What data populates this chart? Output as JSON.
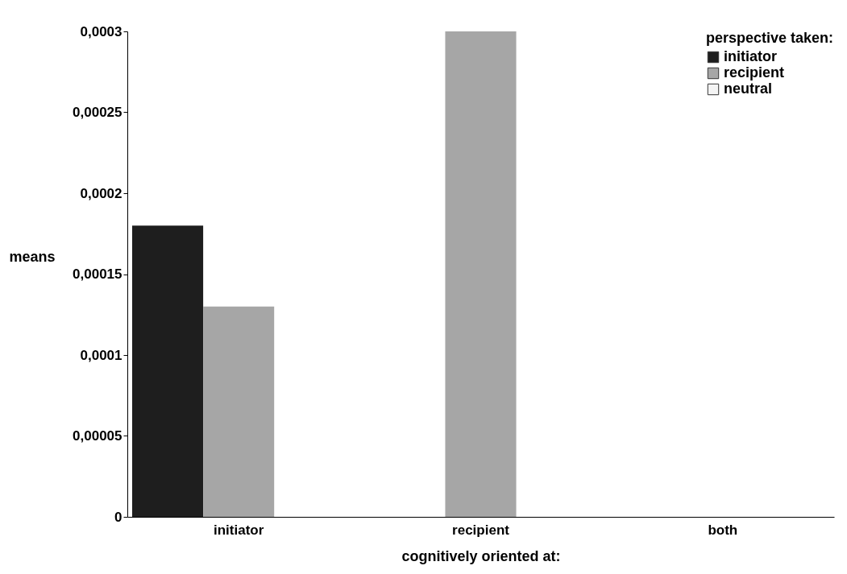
{
  "chart_data": {
    "type": "bar",
    "xlabel": "cognitively oriented at:",
    "ylabel": "means",
    "legend_title": "perspective taken:",
    "legend": "top right",
    "grid": false,
    "categories": [
      "initiator",
      "recipient",
      "both"
    ],
    "ylim": [
      0,
      0.0003
    ],
    "yticks": [
      0,
      {
        "value": 5e-05,
        "label": "0,00005"
      },
      {
        "value": 0.0001,
        "label": "0,0001"
      },
      {
        "value": 0.00015,
        "label": "0,00015"
      },
      {
        "value": 0.0002,
        "label": "0,0002"
      },
      {
        "value": 0.00025,
        "label": "0,00025"
      },
      {
        "value": 0.0003,
        "label": "0,0003"
      }
    ],
    "series": [
      {
        "name": "initiator",
        "color": "#1e1e1e",
        "values": [
          0.00018,
          0,
          0
        ]
      },
      {
        "name": "recipient",
        "color": "#a6a6a6",
        "values": [
          0.00013,
          0.0003,
          0
        ]
      },
      {
        "name": "neutral",
        "color": "#f4f4f4",
        "values": [
          0,
          0,
          0
        ]
      }
    ]
  }
}
